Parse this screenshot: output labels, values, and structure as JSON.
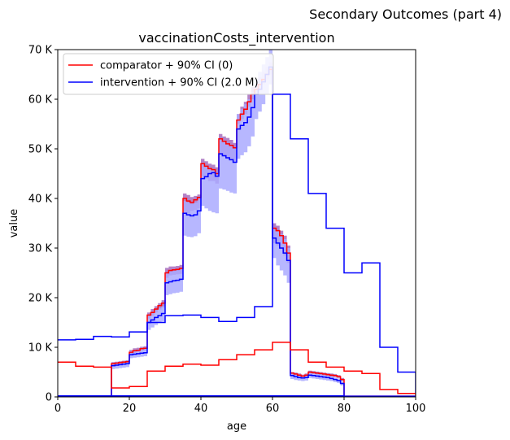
{
  "suptitle": "Secondary Outcomes (part 4)",
  "chart_data": {
    "type": "line",
    "title": "vaccinationCosts_intervention",
    "xlabel": "age",
    "ylabel": "value",
    "xlim": [
      0,
      100
    ],
    "ylim": [
      0,
      70000
    ],
    "x_ticks": [
      0,
      20,
      40,
      60,
      80,
      100
    ],
    "x_tick_labels": [
      "0",
      "20",
      "40",
      "60",
      "80",
      "100"
    ],
    "y_ticks": [
      0,
      10000,
      20000,
      30000,
      40000,
      50000,
      60000,
      70000
    ],
    "y_tick_labels": [
      "0",
      "10 K",
      "20 K",
      "30 K",
      "40 K",
      "50 K",
      "60 K",
      "70 K"
    ],
    "grid": false,
    "legend_position": "top-left",
    "series": [
      {
        "name": "comparator + 90% CI (0)",
        "color": "#ff0000",
        "band_color": "#9b59b6",
        "step": true,
        "x": [
          0,
          1,
          2,
          3,
          4,
          5,
          6,
          7,
          8,
          9,
          10,
          11,
          12,
          13,
          14,
          15,
          16,
          17,
          18,
          19,
          20,
          21,
          22,
          23,
          24,
          25,
          26,
          27,
          28,
          29,
          30,
          31,
          32,
          33,
          34,
          35,
          36,
          37,
          38,
          39,
          40,
          41,
          42,
          43,
          44,
          45,
          46,
          47,
          48,
          49,
          50,
          51,
          52,
          53,
          54,
          55,
          56,
          57,
          58,
          59,
          60,
          61,
          62,
          63,
          64,
          65,
          66,
          67,
          68,
          69,
          70,
          71,
          72,
          73,
          74,
          75,
          76,
          77,
          78,
          79,
          80
        ],
        "values": [
          0,
          0,
          0,
          0,
          0,
          0,
          0,
          0,
          0,
          0,
          0,
          0,
          0,
          0,
          0,
          6700,
          6800,
          6900,
          7000,
          7100,
          9000,
          9300,
          9400,
          9700,
          9800,
          16500,
          17000,
          17700,
          18400,
          18900,
          25000,
          25500,
          25600,
          25700,
          25900,
          40000,
          39500,
          39200,
          39700,
          40200,
          47000,
          46500,
          46000,
          45800,
          45000,
          52000,
          51500,
          51000,
          50700,
          50200,
          55800,
          57000,
          58000,
          59500,
          61000,
          62000,
          63000,
          64000,
          65000,
          66000,
          34000,
          33500,
          32500,
          31000,
          29000,
          4800,
          4600,
          4400,
          4200,
          4400,
          5000,
          4900,
          4800,
          4700,
          4600,
          4500,
          4400,
          4300,
          4100,
          3500,
          0
        ],
        "ci_low": [
          0,
          0,
          0,
          0,
          0,
          0,
          0,
          0,
          0,
          0,
          0,
          0,
          0,
          0,
          0,
          6200,
          6300,
          6400,
          6500,
          6600,
          8600,
          8800,
          9000,
          9200,
          9300,
          15800,
          16300,
          17000,
          17600,
          18000,
          24000,
          24500,
          24600,
          24700,
          24800,
          37000,
          37000,
          37500,
          37700,
          38000,
          44500,
          44000,
          43500,
          43500,
          43000,
          49000,
          48500,
          48000,
          47800,
          47500,
          55000,
          56000,
          57000,
          58500,
          60000,
          61000,
          62000,
          63000,
          64000,
          65000,
          31000,
          30500,
          29800,
          28500,
          27000,
          4300,
          4200,
          4100,
          4000,
          4100,
          4700,
          4600,
          4500,
          4400,
          4300,
          4200,
          4100,
          4000,
          3800,
          3200,
          0
        ],
        "ci_high": [
          0,
          0,
          0,
          0,
          0,
          0,
          0,
          0,
          0,
          0,
          0,
          0,
          0,
          0,
          0,
          7000,
          7100,
          7200,
          7300,
          7400,
          9500,
          9800,
          9900,
          10100,
          10200,
          17000,
          17700,
          18300,
          18900,
          19500,
          26000,
          26300,
          26300,
          26400,
          26600,
          41000,
          40700,
          40300,
          40500,
          40800,
          48000,
          47500,
          47000,
          46800,
          46300,
          53000,
          52500,
          52200,
          51800,
          51200,
          57000,
          58500,
          59500,
          61000,
          62500,
          63500,
          64500,
          65500,
          66500,
          67500,
          35000,
          34500,
          33500,
          32500,
          30500,
          5000,
          4900,
          4700,
          4500,
          4700,
          5300,
          5200,
          5100,
          5000,
          4900,
          4800,
          4700,
          4600,
          4400,
          3800,
          0
        ]
      },
      {
        "name": "intervention + 90% CI (2.0 M)",
        "color": "#0000ff",
        "band_color": "#aaaaff",
        "step": true,
        "x": [
          0,
          1,
          2,
          3,
          4,
          5,
          6,
          7,
          8,
          9,
          10,
          11,
          12,
          13,
          14,
          15,
          16,
          17,
          18,
          19,
          20,
          21,
          22,
          23,
          24,
          25,
          26,
          27,
          28,
          29,
          30,
          31,
          32,
          33,
          34,
          35,
          36,
          37,
          38,
          39,
          40,
          41,
          42,
          43,
          44,
          45,
          46,
          47,
          48,
          49,
          50,
          51,
          52,
          53,
          54,
          55,
          56,
          57,
          58,
          59,
          60,
          61,
          62,
          63,
          64,
          65,
          66,
          67,
          68,
          69,
          70,
          71,
          72,
          73,
          74,
          75,
          76,
          77,
          78,
          79,
          80
        ],
        "values": [
          0,
          0,
          0,
          0,
          0,
          0,
          0,
          0,
          0,
          0,
          0,
          0,
          0,
          0,
          0,
          6300,
          6400,
          6500,
          6600,
          6700,
          8500,
          8600,
          8700,
          8800,
          8900,
          15000,
          15500,
          16000,
          16400,
          16800,
          23000,
          23200,
          23400,
          23500,
          23700,
          37000,
          36700,
          36500,
          36700,
          37500,
          44000,
          44400,
          45000,
          45200,
          44500,
          49000,
          48600,
          48200,
          47800,
          47300,
          54000,
          54700,
          55300,
          56400,
          58300,
          61000,
          62000,
          63500,
          65000,
          66500,
          32000,
          31000,
          30000,
          29000,
          27500,
          4300,
          4100,
          3900,
          3800,
          3900,
          4400,
          4300,
          4200,
          4100,
          4000,
          3900,
          3700,
          3500,
          3300,
          2700,
          0
        ],
        "ci_low": [
          0,
          0,
          0,
          0,
          0,
          0,
          0,
          0,
          0,
          0,
          0,
          0,
          0,
          0,
          0,
          5600,
          5700,
          5800,
          5900,
          6000,
          7800,
          7900,
          8000,
          8100,
          8200,
          13500,
          14000,
          14500,
          14900,
          15200,
          20500,
          20700,
          20900,
          21000,
          21200,
          32500,
          32300,
          32200,
          32400,
          33000,
          38500,
          38000,
          37500,
          37200,
          37000,
          42000,
          41800,
          41500,
          41200,
          41000,
          48000,
          48700,
          49300,
          50500,
          52500,
          56000,
          57500,
          59000,
          61000,
          63000,
          28000,
          26500,
          25500,
          24500,
          23000,
          3600,
          3400,
          3300,
          3200,
          3300,
          3800,
          3700,
          3600,
          3500,
          3400,
          3300,
          3200,
          3000,
          2800,
          2300,
          0
        ],
        "ci_high": [
          0,
          0,
          0,
          0,
          0,
          0,
          0,
          0,
          0,
          0,
          0,
          0,
          0,
          0,
          0,
          6800,
          6900,
          7000,
          7100,
          7200,
          9300,
          9400,
          9500,
          9600,
          9700,
          16500,
          17000,
          17500,
          17900,
          18300,
          25000,
          25300,
          25400,
          25500,
          25700,
          39500,
          39200,
          38900,
          39200,
          40000,
          47000,
          46500,
          46000,
          45800,
          45000,
          52000,
          51500,
          51000,
          50700,
          50200,
          57000,
          58000,
          59000,
          60000,
          61500,
          64000,
          65500,
          67000,
          68500,
          70000,
          34000,
          33500,
          32800,
          31800,
          30000,
          4700,
          4500,
          4300,
          4200,
          4300,
          4800,
          4700,
          4600,
          4500,
          4400,
          4300,
          4100,
          3900,
          3700,
          3100,
          0
        ]
      },
      {
        "name": "",
        "color": "#ff0000",
        "step": true,
        "x": [
          0,
          5,
          10,
          15,
          20,
          25,
          30,
          35,
          40,
          45,
          50,
          55,
          60,
          65,
          70,
          75,
          80,
          85,
          90,
          95,
          100
        ],
        "values": [
          7000,
          6200,
          6000,
          1800,
          2100,
          5200,
          6200,
          6600,
          6400,
          7500,
          8500,
          9500,
          11000,
          9500,
          7000,
          6000,
          5200,
          4700,
          1500,
          700,
          0
        ]
      },
      {
        "name": "",
        "color": "#0000ff",
        "step": true,
        "x": [
          0,
          5,
          10,
          15,
          20,
          25,
          30,
          35,
          40,
          45,
          50,
          55,
          60,
          65,
          70,
          75,
          80,
          85,
          90,
          95,
          100
        ],
        "values": [
          11500,
          11600,
          12200,
          12100,
          13100,
          15000,
          16400,
          16500,
          16000,
          15200,
          16000,
          18200,
          61000,
          52000,
          41000,
          34000,
          25000,
          27000,
          10000,
          5000,
          800
        ]
      },
      {
        "name": "",
        "color": "#ff0000",
        "step": true,
        "x": [
          0,
          80,
          100
        ],
        "values": [
          200,
          150,
          0
        ]
      },
      {
        "name": "",
        "color": "#0000ff",
        "step": true,
        "x": [
          0,
          80,
          100
        ],
        "values": [
          200,
          150,
          0
        ]
      }
    ]
  }
}
